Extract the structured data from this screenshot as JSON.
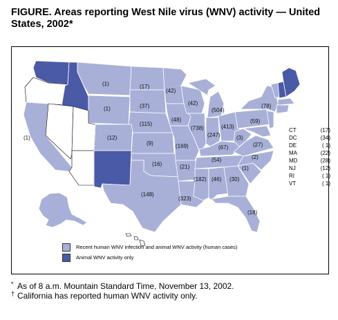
{
  "title": "FIGURE. Areas reporting West Nile virus (WNV) activity — United States, 2002*",
  "colors": {
    "human": "#a8b0d8",
    "animal": "#4b5aa6",
    "none": "#ffffff",
    "outline": "#000000"
  },
  "map_labels": {
    "wa": "",
    "mt": "(1)",
    "nd": "(17)",
    "mn": "(42)",
    "wy": "(1)",
    "sd": "(37)",
    "wi": "(42)",
    "mi": "(504)",
    "ny": "(78)",
    "ca": "(1)",
    "co": "(12)",
    "ne": "(115)",
    "ia": "(48)",
    "il": "(738)",
    "in": "(247)",
    "oh": "(413)",
    "pa": "(59)",
    "ks": "(9)",
    "mo": "(169)",
    "ky": "(67)",
    "wv": "(3)",
    "va": "(27)",
    "ok": "(16)",
    "ar": "(21)",
    "tn": "(54)",
    "nc": "(2)",
    "sc": "(1)",
    "tx": "(148)",
    "la": "(323)",
    "ms": "(182)",
    "al": "(46)",
    "ga": "(30)",
    "fl": "(18)"
  },
  "side_list": [
    {
      "state": "CT",
      "count": "(17)"
    },
    {
      "state": "DC",
      "count": "(34)"
    },
    {
      "state": "DE",
      "count": "( 1)"
    },
    {
      "state": "MA",
      "count": "(22)"
    },
    {
      "state": "MD",
      "count": "(28)"
    },
    {
      "state": "NJ",
      "count": "(12)"
    },
    {
      "state": "RI",
      "count": "( 1)"
    },
    {
      "state": "VT",
      "count": "( 1)"
    }
  ],
  "legend": {
    "human": "Recent human WNV infection and animal WNV activity (human cases)",
    "animal": "Animal WNV activity only"
  },
  "footnotes": {
    "note1_mark": "*",
    "note1": "As of 8 a.m. Mountain Standard Time, November 13, 2002.",
    "note2_mark": "†",
    "note2": "California has reported human WNV activity only."
  }
}
